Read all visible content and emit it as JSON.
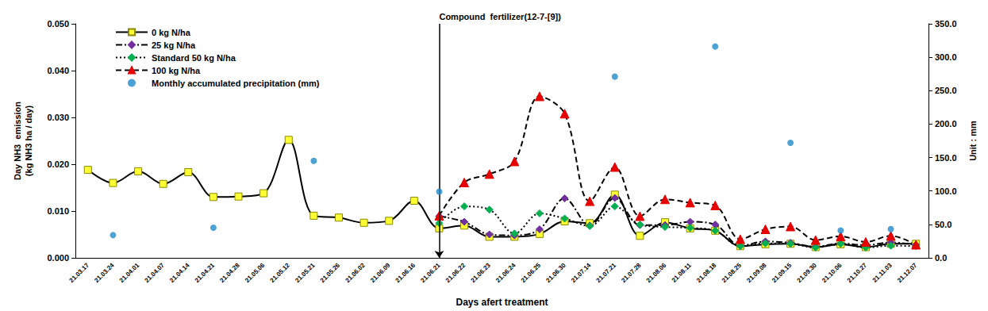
{
  "chart_data": {
    "type": "line",
    "x_label": "Days afert treatment",
    "y_label": "Day NH3  emission\n(kg NH3 ha / day)",
    "y2_label": "Unit : mm",
    "categories": [
      "21.03.17",
      "21.03.24",
      "21.04.01",
      "21.04.07",
      "21.04.14",
      "21.04.21",
      "21.04.28",
      "21.05.06",
      "21.05.12",
      "21.05.21",
      "21.05.26",
      "21.06.02",
      "21.06.09",
      "21.06.16",
      "21.06.21",
      "21.06.22",
      "21.06.23",
      "21.06.24",
      "21.06.25",
      "21.06.30",
      "21.07.14",
      "21.07.21",
      "21.07.28",
      "21.08.06",
      "21.08.11",
      "21.08.18",
      "21.08.25",
      "21.09.08",
      "21.09.15",
      "21.09.30",
      "21.10.06",
      "21.10.27",
      "21.11.03",
      "21.12.07"
    ],
    "series": [
      {
        "name": "0 kg N/ha",
        "color": "#ffff33",
        "marker": "square",
        "line_style": "solid",
        "values": [
          0.0188,
          0.016,
          0.0185,
          0.0158,
          0.0183,
          0.013,
          0.0131,
          0.0138,
          0.0252,
          0.009,
          0.0086,
          0.0075,
          0.0079,
          0.0122,
          0.0063,
          0.0069,
          0.0045,
          0.0045,
          0.0051,
          0.0078,
          0.0074,
          0.0135,
          0.0047,
          0.0076,
          0.0063,
          0.0058,
          0.0025,
          0.0029,
          0.003,
          0.0023,
          0.0029,
          0.0023,
          0.003,
          0.003
        ]
      },
      {
        "name": "25 kg N/ha",
        "color": "#7030a0",
        "marker": "diamond",
        "line_style": "dashdot",
        "values": [
          null,
          null,
          null,
          null,
          null,
          null,
          null,
          null,
          null,
          null,
          null,
          null,
          null,
          null,
          0.0089,
          0.0077,
          0.005,
          0.0048,
          0.0061,
          0.0127,
          0.0069,
          0.0128,
          0.007,
          0.007,
          0.0077,
          0.0071,
          0.0026,
          0.0035,
          0.0032,
          0.0024,
          0.0031,
          0.0027,
          0.0033,
          0.0028
        ]
      },
      {
        "name": "Standard 50 kg N/ha",
        "color": "#00b050",
        "marker": "diamond",
        "line_style": "dotted",
        "values": [
          null,
          null,
          null,
          null,
          null,
          null,
          null,
          null,
          null,
          null,
          null,
          null,
          null,
          null,
          0.0074,
          0.011,
          0.0103,
          0.0052,
          0.0095,
          0.0084,
          0.0068,
          0.011,
          0.0071,
          0.0066,
          0.0064,
          0.0058,
          0.0025,
          0.0031,
          0.003,
          0.0022,
          0.003,
          0.0022,
          0.0026,
          0.0025
        ]
      },
      {
        "name": "100 kg N/ha",
        "color": "#e60000",
        "marker": "triangle",
        "line_style": "dashed",
        "values": [
          null,
          null,
          null,
          null,
          null,
          null,
          null,
          null,
          null,
          null,
          null,
          null,
          null,
          null,
          0.009,
          0.0161,
          0.0179,
          0.0206,
          0.0345,
          0.0308,
          0.0121,
          0.0194,
          0.0089,
          0.0125,
          0.0118,
          0.0112,
          0.004,
          0.0061,
          0.0067,
          0.0038,
          0.0046,
          0.0034,
          0.0047,
          0.0028
        ]
      },
      {
        "name": "Monthly accumulated precipitation (mm)",
        "type": "scatter",
        "axis": "y2",
        "color": "#1f8bc9",
        "marker": "circle",
        "values": [
          null,
          34,
          null,
          null,
          null,
          45,
          null,
          null,
          null,
          145,
          null,
          null,
          null,
          null,
          99,
          null,
          null,
          null,
          null,
          null,
          null,
          271,
          null,
          null,
          null,
          316,
          null,
          null,
          172,
          null,
          41,
          null,
          43,
          null
        ]
      }
    ],
    "ylim": [
      0,
      0.05
    ],
    "yticks": [
      {
        "value": 0,
        "label": "0.000"
      },
      {
        "value": 0.01,
        "label": "0.010"
      },
      {
        "value": 0.02,
        "label": "0.020"
      },
      {
        "value": 0.03,
        "label": "0.030"
      },
      {
        "value": 0.04,
        "label": "0.040"
      },
      {
        "value": 0.05,
        "label": "0.050"
      }
    ],
    "y2lim": [
      0,
      350
    ],
    "y2ticks": [
      {
        "value": 0,
        "label": "0.0"
      },
      {
        "value": 50,
        "label": "50.0"
      },
      {
        "value": 100,
        "label": "100.0"
      },
      {
        "value": 150,
        "label": "150.0"
      },
      {
        "value": 200,
        "label": "200.0"
      },
      {
        "value": 250,
        "label": "250.0"
      },
      {
        "value": 300,
        "label": "300.0"
      },
      {
        "value": 350,
        "label": "350.0"
      }
    ],
    "annotations": [
      {
        "text": "Compound  fertilizer(12-7-[9])",
        "x": "21.06.21"
      }
    ],
    "legend": "upper left",
    "grid": false
  }
}
